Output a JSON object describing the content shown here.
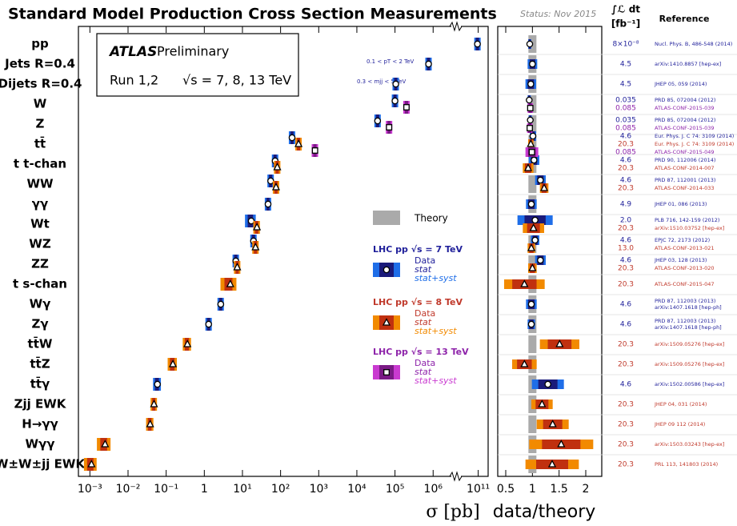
{
  "header": {
    "title": "Standard Model Production Cross Section Measurements",
    "status": "Status: Nov 2015",
    "lumi_header": "∫ℒ dt",
    "lumi_unit": "[fb⁻¹]",
    "reference_header": "Reference"
  },
  "atlas_box": {
    "experiment": "ATLAS",
    "status": "Preliminary",
    "run": "Run 1,2",
    "energies": "√s = 7, 8, 13 TeV"
  },
  "annotations": [
    "0.1 < pT < 2 TeV",
    "0.3 < mjj < 5 TeV"
  ],
  "legend": {
    "theory": "Theory",
    "items": [
      "Data",
      "stat",
      "stat+syst"
    ]
  },
  "chart_data": [
    {
      "type": "dot",
      "x_label": "σ [pb]",
      "log_x": true,
      "xlim": [
        0.0005,
        200000000000
      ],
      "axis_break": [
        3000000,
        30000000000
      ],
      "xticks": [
        {
          "value": 0.001,
          "label": "10⁻³"
        },
        {
          "value": 0.01,
          "label": "10⁻²"
        },
        {
          "value": 0.1,
          "label": "10⁻¹"
        },
        1,
        {
          "value": 10,
          "label": "10¹"
        },
        {
          "value": 100,
          "label": "10²"
        },
        {
          "value": 1000,
          "label": "10³"
        },
        {
          "value": 10000,
          "label": "10⁴"
        },
        {
          "value": 100000,
          "label": "10⁵"
        },
        {
          "value": 1000000,
          "label": "10⁶"
        },
        {
          "value": 100000000000,
          "label": "10¹¹"
        }
      ],
      "categories": [
        "pp",
        "Jets R=0.4",
        "Dijets R=0.4",
        "W",
        "Z",
        "tt̄",
        "t t-chan",
        "WW",
        "γγ",
        "Wt",
        "WZ",
        "ZZ",
        "t s-chan",
        "Wγ",
        "Zγ",
        "tt̄W",
        "tt̄Z",
        "tt̄γ",
        "Zjj EWK",
        "H→γγ",
        "Wγγ",
        "W±W±jj EWK"
      ],
      "series": [
        {
          "name": "LHC pp √s = 7 TeV",
          "marker": "circle",
          "color": "#1a1a7a",
          "syst_color": "#1f6ee8",
          "text_color": "#1f1f9a",
          "values": [
            95000000000,
            760000,
            105000,
            100000,
            35000,
            200,
            72,
            55,
            47,
            17,
            19.5,
            6.7,
            null,
            2.7,
            1.3,
            null,
            null,
            0.059,
            null,
            null,
            null,
            null
          ]
        },
        {
          "name": "LHC pp √s = 8 TeV",
          "marker": "triangle",
          "color": "#c0300f",
          "syst_color": "#f28a00",
          "text_color": "#c0392b",
          "values": [
            null,
            null,
            null,
            null,
            null,
            296,
            82,
            76,
            null,
            24,
            22,
            7.3,
            4.8,
            null,
            null,
            0.36,
            0.15,
            null,
            0.048,
            0.038,
            0.0025,
            0.0011
          ]
        },
        {
          "name": "LHC pp √s = 13 TeV",
          "marker": "square",
          "color": "#7a1a85",
          "syst_color": "#c93ad0",
          "text_color": "#8e24aa",
          "values": [
            null,
            null,
            null,
            200000,
            70000,
            800,
            null,
            null,
            null,
            null,
            null,
            null,
            null,
            null,
            null,
            null,
            null,
            null,
            null,
            null,
            null,
            null
          ]
        }
      ]
    },
    {
      "type": "ratio",
      "x_label": "data/theory",
      "xlim": [
        0.35,
        2.3
      ],
      "xticks": [
        0.5,
        1,
        1.5,
        2
      ],
      "series": [
        {
          "values": [
            0.95,
            1.0,
            0.97,
            0.94,
            0.96,
            1.01,
            1.03,
            1.15,
            0.98,
            1.05,
            1.05,
            1.15,
            null,
            0.98,
            0.98,
            null,
            null,
            1.29,
            null,
            null,
            null,
            null
          ],
          "errors": [
            0.03,
            0.09,
            0.1,
            0.03,
            0.03,
            0.06,
            0.1,
            0.1,
            0.1,
            0.33,
            0.08,
            0.1,
            null,
            0.1,
            0.07,
            null,
            null,
            0.3,
            null,
            null,
            null,
            null
          ],
          "lumi": [
            "8×10⁻⁸",
            "4.5",
            "4.5",
            "0.035",
            "0.035",
            "4.6",
            "4.6",
            "4.6",
            "4.9",
            "2.0",
            "4.6",
            "4.6",
            null,
            "4.6",
            "4.6",
            null,
            null,
            "4.6",
            null,
            null,
            null,
            null
          ],
          "refs": [
            "Nucl. Phys. B, 486-548 (2014)",
            "arXiv:1410.8857 [hep-ex]",
            "JHEP 05, 059 (2014)",
            "PRD 85, 072004 (2012)",
            "PRD 85, 072004 (2012)",
            "Eur. Phys. J. C 74: 3109 (2014)",
            "PRD 90, 112006 (2014)",
            "PRD 87, 112001 (2013)",
            "JHEP 01, 086 (2013)",
            "PLB 716, 142-159 (2012)",
            "EPJC 72, 2173 (2012)",
            "JHEP 03, 128 (2013)",
            null,
            [
              "PRD 87, 112003 (2013)",
              "arXiv:1407.1618 [hep-ph]"
            ],
            [
              "PRD 87, 112003 (2013)",
              "arXiv:1407.1618 [hep-ph]"
            ],
            null,
            null,
            "arXiv:1502.00586 [hep-ex]",
            null,
            null,
            null,
            null
          ]
        },
        {
          "values": [
            null,
            null,
            null,
            null,
            null,
            0.97,
            0.92,
            1.22,
            null,
            1.02,
            0.98,
            1.0,
            0.85,
            null,
            null,
            1.51,
            0.85,
            null,
            1.18,
            1.38,
            1.54,
            1.37
          ],
          "errors": [
            null,
            null,
            null,
            null,
            null,
            0.05,
            0.1,
            0.08,
            null,
            0.2,
            0.07,
            0.08,
            0.38,
            null,
            null,
            0.37,
            0.23,
            null,
            0.2,
            0.3,
            0.6,
            0.5
          ],
          "lumi": [
            null,
            null,
            null,
            null,
            null,
            "20.3",
            "20.3",
            "20.3",
            null,
            "20.3",
            "13.0",
            "20.3",
            "20.3",
            null,
            null,
            "20.3",
            "20.3",
            null,
            "20.3",
            "20.3",
            "20.3",
            "20.3"
          ],
          "refs": [
            null,
            null,
            null,
            null,
            null,
            "Eur. Phys. J. C 74: 3109 (2014)",
            "ATLAS-CONF-2014-007",
            "ATLAS-CONF-2014-033",
            null,
            "arXiv:1510.03752 [hep-ex]",
            "ATLAS-CONF-2013-021",
            "ATLAS-CONF-2013-020",
            "ATLAS-CONF-2015-047",
            null,
            null,
            "arXiv:1509.05276 [hep-ex]",
            "arXiv:1509.05276 [hep-ex]",
            null,
            "JHEP 04, 031 (2014)",
            "JHEP 09 112 (2014)",
            "arXiv:1503.03243 [hep-ex]",
            "PRL 113, 141803 (2014)"
          ]
        },
        {
          "values": [
            null,
            null,
            null,
            0.96,
            0.95,
            0.99,
            null,
            null,
            null,
            null,
            null,
            null,
            null,
            null,
            null,
            null,
            null,
            null,
            null,
            null,
            null,
            null
          ],
          "errors": [
            null,
            null,
            null,
            0.05,
            0.05,
            0.12,
            null,
            null,
            null,
            null,
            null,
            null,
            null,
            null,
            null,
            null,
            null,
            null,
            null,
            null,
            null,
            null
          ],
          "lumi": [
            null,
            null,
            null,
            "0.085",
            "0.085",
            "0.085",
            null,
            null,
            null,
            null,
            null,
            null,
            null,
            null,
            null,
            null,
            null,
            null,
            null,
            null,
            null,
            null
          ],
          "refs": [
            null,
            null,
            null,
            "ATLAS-CONF-2015-039",
            "ATLAS-CONF-2015-039",
            "ATLAS-CONF-2015-049",
            null,
            null,
            null,
            null,
            null,
            null,
            null,
            null,
            null,
            null,
            null,
            null,
            null,
            null,
            null,
            null
          ]
        }
      ]
    }
  ]
}
